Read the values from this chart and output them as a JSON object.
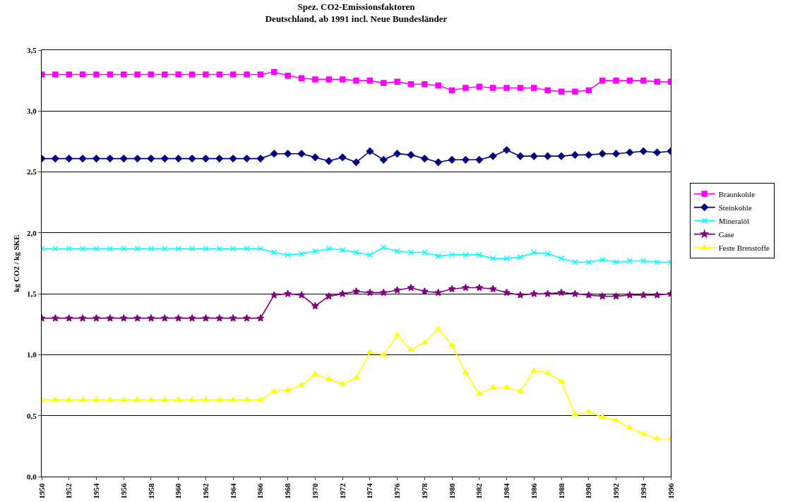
{
  "chart_data": {
    "type": "line",
    "title": "Spez. CO2-Emissionsfaktoren\nDeutschland, ab 1991 incl. Neue Bundesländer",
    "ylabel": "kg CO2 / kg SKE",
    "x": [
      1950,
      1951,
      1952,
      1953,
      1954,
      1955,
      1956,
      1957,
      1958,
      1959,
      1960,
      1961,
      1962,
      1963,
      1964,
      1965,
      1966,
      1967,
      1968,
      1969,
      1970,
      1971,
      1972,
      1973,
      1974,
      1975,
      1976,
      1977,
      1978,
      1979,
      1980,
      1981,
      1982,
      1983,
      1984,
      1985,
      1986,
      1987,
      1988,
      1989,
      1990,
      1991,
      1992,
      1993,
      1994,
      1995,
      1996
    ],
    "series": [
      {
        "name": "Braunkohle",
        "color": "#ff00ff",
        "marker": "square",
        "values": [
          3.3,
          3.3,
          3.3,
          3.3,
          3.3,
          3.3,
          3.3,
          3.3,
          3.3,
          3.3,
          3.3,
          3.3,
          3.3,
          3.3,
          3.3,
          3.3,
          3.3,
          3.32,
          3.29,
          3.27,
          3.26,
          3.26,
          3.26,
          3.25,
          3.25,
          3.23,
          3.24,
          3.22,
          3.22,
          3.21,
          3.17,
          3.19,
          3.2,
          3.19,
          3.19,
          3.19,
          3.19,
          3.17,
          3.16,
          3.16,
          3.17,
          3.25,
          3.25,
          3.25,
          3.25,
          3.24,
          3.24
        ]
      },
      {
        "name": "Steinkohle",
        "color": "#000080",
        "marker": "diamond",
        "values": [
          2.61,
          2.61,
          2.61,
          2.61,
          2.61,
          2.61,
          2.61,
          2.61,
          2.61,
          2.61,
          2.61,
          2.61,
          2.61,
          2.61,
          2.61,
          2.61,
          2.61,
          2.65,
          2.65,
          2.65,
          2.62,
          2.59,
          2.62,
          2.58,
          2.67,
          2.6,
          2.65,
          2.64,
          2.61,
          2.58,
          2.6,
          2.6,
          2.6,
          2.63,
          2.68,
          2.63,
          2.63,
          2.63,
          2.63,
          2.64,
          2.64,
          2.65,
          2.65,
          2.66,
          2.67,
          2.66,
          2.67
        ]
      },
      {
        "name": "Mineralöl",
        "color": "#00ffff",
        "marker": "cross",
        "values": [
          1.87,
          1.87,
          1.87,
          1.87,
          1.87,
          1.87,
          1.87,
          1.87,
          1.87,
          1.87,
          1.87,
          1.87,
          1.87,
          1.87,
          1.87,
          1.87,
          1.87,
          1.84,
          1.82,
          1.83,
          1.85,
          1.87,
          1.86,
          1.84,
          1.82,
          1.88,
          1.85,
          1.84,
          1.84,
          1.81,
          1.82,
          1.82,
          1.82,
          1.79,
          1.79,
          1.8,
          1.84,
          1.83,
          1.79,
          1.76,
          1.76,
          1.78,
          1.76,
          1.77,
          1.77,
          1.76,
          1.76
        ]
      },
      {
        "name": "Gase",
        "color": "#800080",
        "marker": "star",
        "values": [
          1.3,
          1.3,
          1.3,
          1.3,
          1.3,
          1.3,
          1.3,
          1.3,
          1.3,
          1.3,
          1.3,
          1.3,
          1.3,
          1.3,
          1.3,
          1.3,
          1.3,
          1.49,
          1.5,
          1.49,
          1.4,
          1.48,
          1.5,
          1.52,
          1.51,
          1.51,
          1.53,
          1.55,
          1.52,
          1.51,
          1.54,
          1.55,
          1.55,
          1.54,
          1.51,
          1.49,
          1.5,
          1.5,
          1.51,
          1.5,
          1.49,
          1.48,
          1.48,
          1.49,
          1.49,
          1.49,
          1.5
        ]
      },
      {
        "name": "Feste Brenstoffe",
        "color": "#ffff00",
        "marker": "triangle",
        "values": [
          0.63,
          0.63,
          0.63,
          0.63,
          0.63,
          0.63,
          0.63,
          0.63,
          0.63,
          0.63,
          0.63,
          0.63,
          0.63,
          0.63,
          0.63,
          0.63,
          0.63,
          0.7,
          0.71,
          0.75,
          0.84,
          0.8,
          0.76,
          0.81,
          1.02,
          1.0,
          1.16,
          1.04,
          1.1,
          1.21,
          1.08,
          0.85,
          0.68,
          0.73,
          0.73,
          0.7,
          0.87,
          0.85,
          0.78,
          0.51,
          0.53,
          0.49,
          0.46,
          0.4,
          0.35,
          0.31,
          0.31
        ]
      }
    ],
    "xlim": [
      1950,
      1996
    ],
    "xticks": [
      1950,
      1952,
      1954,
      1956,
      1958,
      1960,
      1962,
      1964,
      1966,
      1968,
      1970,
      1972,
      1974,
      1976,
      1978,
      1980,
      1982,
      1984,
      1986,
      1988,
      1990,
      1992,
      1994,
      1996
    ],
    "ylim": [
      0,
      3.5
    ],
    "yticks": [
      {
        "value": 0,
        "label": "0,0"
      },
      {
        "value": 0.5,
        "label": "0,5"
      },
      {
        "value": 1,
        "label": "1,0"
      },
      {
        "value": 1.5,
        "label": "1,5"
      },
      {
        "value": 2,
        "label": "2,0"
      },
      {
        "value": 2.5,
        "label": "2,5"
      },
      {
        "value": 3,
        "label": "3,0"
      },
      {
        "value": 3.5,
        "label": "3,5"
      }
    ],
    "grid": "y",
    "legend": "right",
    "line_style": "solid"
  }
}
